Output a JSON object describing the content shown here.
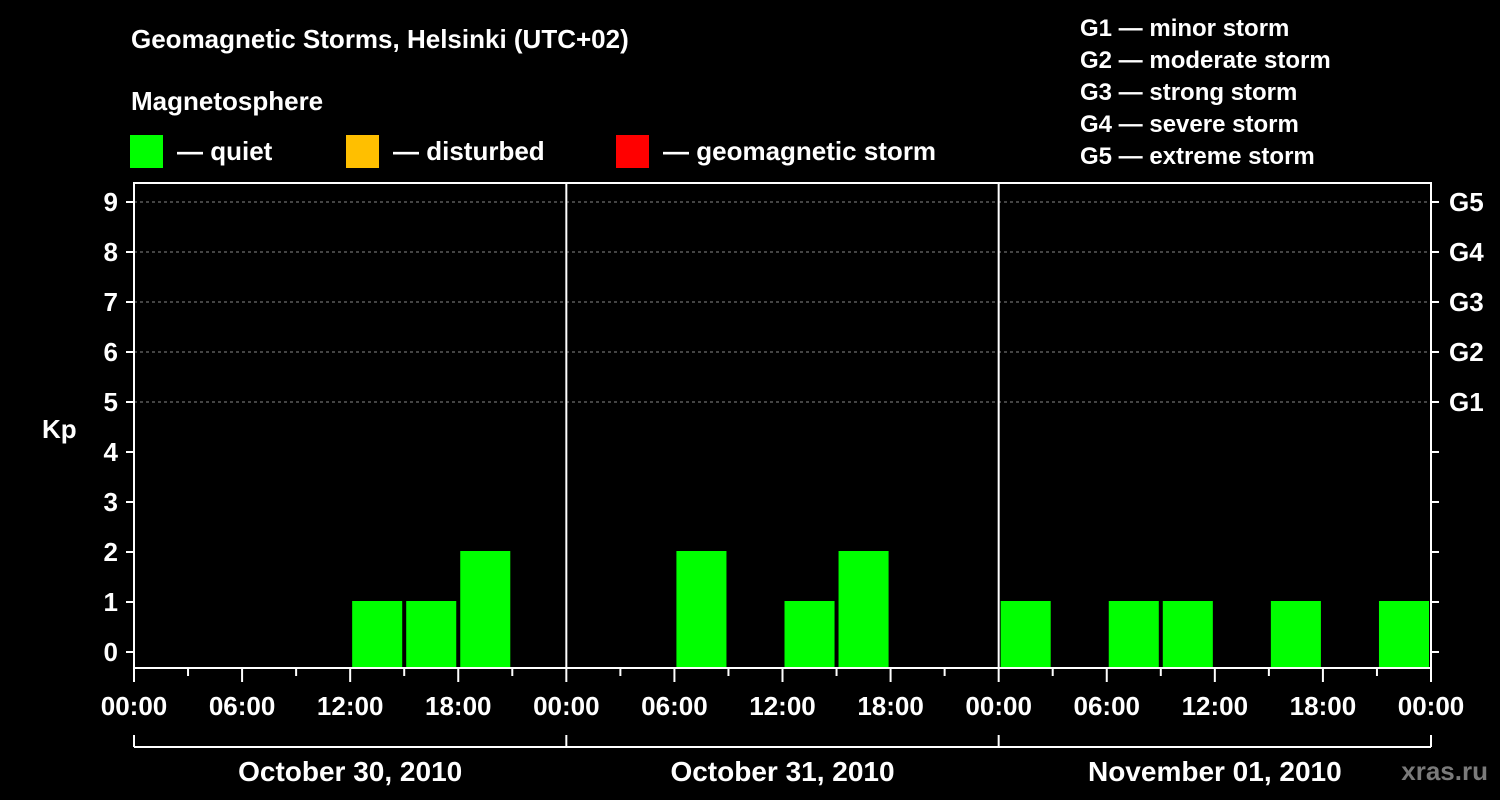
{
  "title": "Geomagnetic Storms, Helsinki (UTC+02)",
  "magnetosphere": {
    "title": "Magnetosphere",
    "items": [
      {
        "label": "— quiet",
        "color": "#00ff00"
      },
      {
        "label": "— disturbed",
        "color": "#ffbf00"
      },
      {
        "label": "— geomagnetic storm",
        "color": "#ff0000"
      }
    ]
  },
  "storm_legend": [
    "G1 — minor storm",
    "G2 — moderate storm",
    "G3 — strong storm",
    "G4 — severe storm",
    "G5 — extreme storm"
  ],
  "watermark": "xras.ru",
  "chart_data": {
    "type": "bar",
    "ylabel": "Kp",
    "ylim": [
      0,
      9
    ],
    "y_ticks": [
      "0",
      "1",
      "2",
      "3",
      "4",
      "5",
      "6",
      "7",
      "8",
      "9"
    ],
    "right_axis_labels": [
      {
        "kp": 5,
        "label": "G1"
      },
      {
        "kp": 6,
        "label": "G2"
      },
      {
        "kp": 7,
        "label": "G3"
      },
      {
        "kp": 8,
        "label": "G4"
      },
      {
        "kp": 9,
        "label": "G5"
      }
    ],
    "x_tick_labels": [
      "00:00",
      "06:00",
      "12:00",
      "18:00",
      "00:00",
      "06:00",
      "12:00",
      "18:00",
      "00:00",
      "06:00",
      "12:00",
      "18:00",
      "00:00"
    ],
    "days": [
      "October 30, 2010",
      "October 31, 2010",
      "November 01, 2010"
    ],
    "interval_hours": 3,
    "values": [
      0,
      0,
      0,
      0,
      1,
      1,
      2,
      0,
      0,
      0,
      2,
      0,
      1,
      2,
      0,
      0,
      1,
      0,
      1,
      1,
      0,
      1,
      0,
      1
    ],
    "bar_color": "#00ff00",
    "grid": "dashed at Kp 5-9"
  }
}
